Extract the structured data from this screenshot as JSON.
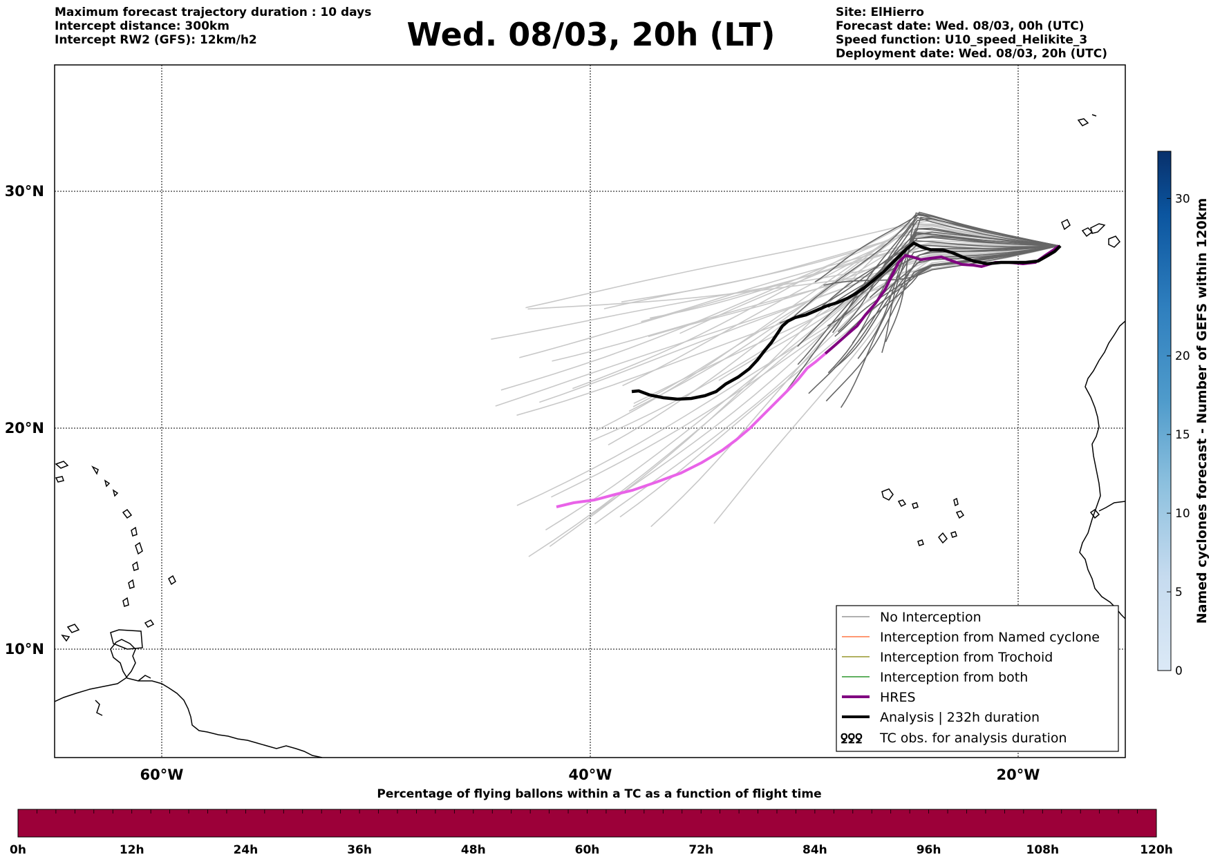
{
  "header": {
    "left_lines": [
      "Maximum forecast trajectory duration : 10 days",
      "Intercept distance: 300km",
      "Intercept RW2 (GFS):  12km/h2"
    ],
    "title": "Wed. 08/03, 20h (LT)",
    "right_lines": [
      "Site: ElHierro",
      "Forecast date: Wed. 08/03, 00h (UTC)",
      "Speed function: U10_speed_Helikite_3",
      "Deployment date: Wed. 08/03, 20h (UTC)"
    ]
  },
  "map": {
    "lat_labels": [
      "30°N",
      "20°N",
      "10°N"
    ],
    "lon_labels": [
      "60°W",
      "40°W",
      "20°W"
    ],
    "lon_range": [
      -65,
      -15
    ],
    "lat_range": [
      5.3,
      34.7
    ],
    "launch_site": {
      "lon": -18,
      "lat": 27.6
    }
  },
  "legend": {
    "items": [
      {
        "label": "No Interception",
        "color": "#808080",
        "style": "thin"
      },
      {
        "label": "Interception from Named cyclone",
        "color": "#ff5a1e",
        "style": "thin"
      },
      {
        "label": "Interception from Trochoid",
        "color": "#808000",
        "style": "thin"
      },
      {
        "label": "Interception from both",
        "color": "#008000",
        "style": "thin"
      },
      {
        "label": "HRES",
        "color": "#800080",
        "style": "thick"
      },
      {
        "label": "Analysis | 232h duration",
        "color": "#000000",
        "style": "thick"
      },
      {
        "label": "TC obs. for analysis duration",
        "color": "#000000",
        "style": "symbol",
        "symbol": "ꝿꝿꝿ"
      }
    ]
  },
  "colorbar": {
    "title": "Named cyclones forecast - Number of GEFS within 120km",
    "range": [
      0,
      33
    ],
    "ticks": [
      "0",
      "5",
      "10",
      "15",
      "20",
      "30"
    ],
    "tick_values": [
      0,
      5,
      10,
      15,
      20,
      30
    ],
    "colors": [
      "#dbe9f6",
      "#bad6eb",
      "#89bedc",
      "#539ecd",
      "#2b7bba",
      "#0b559f",
      "#08306b"
    ]
  },
  "time_bar": {
    "title": "Percentage of flying ballons within a TC as a function of flight time",
    "labels": [
      "0h",
      "12h",
      "24h",
      "36h",
      "48h",
      "60h",
      "72h",
      "84h",
      "96h",
      "108h",
      "120h"
    ],
    "fill_color": "#9c0039",
    "percent_values": []
  }
}
